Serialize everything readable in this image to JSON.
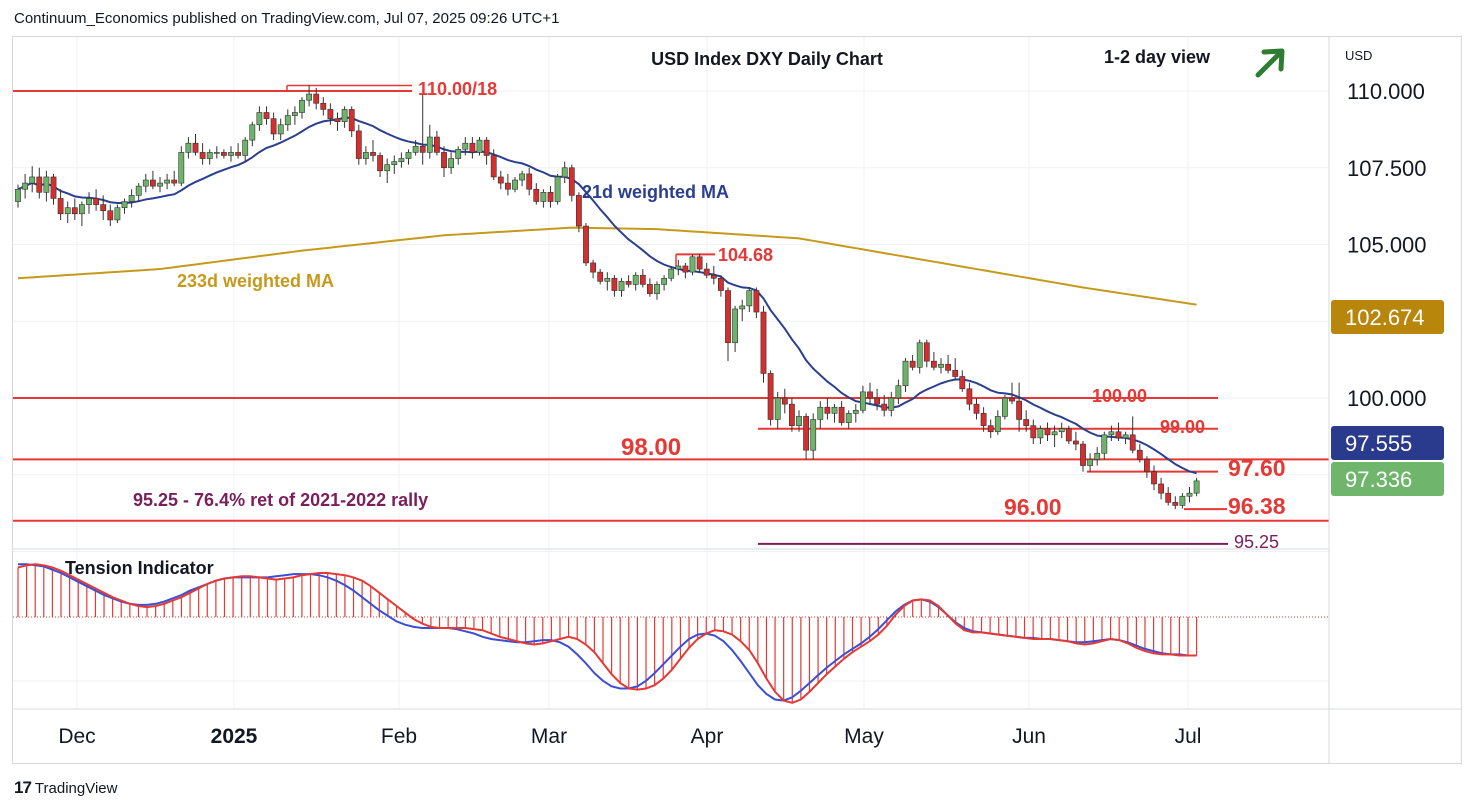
{
  "header": {
    "publisher_line": "Continuum_Economics published on TradingView.com, Jul 07, 2025 09:26 UTC+1"
  },
  "footer": {
    "brand": "TradingView"
  },
  "currency_label": "USD",
  "colors": {
    "up_candle": "#6db36a",
    "down_candle": "#d32f2f",
    "ma21": "#2a3f8f",
    "ma233": "#c59a1c",
    "level_line": "#e53935",
    "fib_line": "#7b1f5c",
    "tension_fast": "#e53935",
    "tension_slow": "#3b4fd6",
    "arrow": "#2e7d32",
    "badge_ma233": "#b8860b",
    "badge_ma21": "#2a3a8c",
    "badge_price": "#6fb66c"
  },
  "chart_data": {
    "type": "candlestick",
    "title": "USD Index DXY Daily Chart",
    "view_label": "1-2 day view",
    "view_direction_icon": "arrow-up-right-icon",
    "y_axis": {
      "currency": "USD",
      "min": 94.9,
      "max": 111.2,
      "ticks": [
        "110.000",
        "107.500",
        "105.000",
        "100.000"
      ]
    },
    "x_axis": {
      "ticks": [
        "Dec",
        "2025",
        "Feb",
        "Mar",
        "Apr",
        "May",
        "Jun",
        "Jul"
      ]
    },
    "price_badges": [
      {
        "label": "102.674",
        "value": 102.674,
        "kind": "ma233"
      },
      {
        "label": "97.555",
        "value": 97.555,
        "kind": "ma21"
      },
      {
        "label": "97.336",
        "value": 97.336,
        "kind": "price"
      }
    ],
    "series_labels": {
      "ma21": "21d weighted MA",
      "ma233": "233d weighted MA"
    },
    "levels": [
      {
        "label": "110.00/18",
        "value": 110.0,
        "top_value": 110.18
      },
      {
        "label": "104.68",
        "value": 104.68
      },
      {
        "label": "100.00",
        "value": 100.0
      },
      {
        "label": "99.00",
        "value": 99.0
      },
      {
        "label": "98.00",
        "value": 98.0
      },
      {
        "label": "97.60",
        "value": 97.6
      },
      {
        "label": "96.38",
        "value": 96.38
      },
      {
        "label": "96.00",
        "value": 96.0
      },
      {
        "label": "95.25",
        "value": 95.25
      }
    ],
    "fib_annotation": "95.25 - 76.4% ret of 2021-2022 rally",
    "ohlc": [
      [
        106.4,
        106.95,
        106.2,
        106.8
      ],
      [
        106.8,
        107.3,
        106.5,
        107.0
      ],
      [
        107.0,
        107.55,
        106.7,
        107.2
      ],
      [
        107.2,
        107.5,
        106.5,
        106.7
      ],
      [
        106.7,
        107.4,
        106.4,
        107.2
      ],
      [
        107.2,
        107.3,
        106.3,
        106.5
      ],
      [
        106.5,
        106.8,
        105.8,
        106.0
      ],
      [
        106.0,
        106.4,
        105.7,
        106.2
      ],
      [
        106.2,
        106.5,
        105.8,
        106.0
      ],
      [
        106.0,
        106.4,
        105.6,
        106.3
      ],
      [
        106.3,
        106.7,
        106.0,
        106.5
      ],
      [
        106.5,
        106.8,
        106.1,
        106.3
      ],
      [
        106.3,
        106.6,
        105.8,
        106.1
      ],
      [
        106.1,
        106.3,
        105.6,
        105.8
      ],
      [
        105.8,
        106.3,
        105.7,
        106.2
      ],
      [
        106.2,
        106.5,
        106.0,
        106.4
      ],
      [
        106.4,
        106.8,
        106.2,
        106.6
      ],
      [
        106.6,
        107.0,
        106.4,
        106.9
      ],
      [
        106.9,
        107.3,
        106.7,
        107.1
      ],
      [
        107.1,
        107.4,
        106.8,
        106.9
      ],
      [
        106.9,
        107.2,
        106.7,
        107.0
      ],
      [
        107.0,
        107.3,
        106.8,
        107.1
      ],
      [
        107.1,
        107.4,
        106.9,
        107.0
      ],
      [
        107.0,
        108.2,
        106.9,
        108.0
      ],
      [
        108.0,
        108.5,
        107.8,
        108.3
      ],
      [
        108.3,
        108.6,
        107.9,
        108.0
      ],
      [
        108.0,
        108.3,
        107.6,
        107.8
      ],
      [
        107.8,
        108.1,
        107.6,
        108.0
      ],
      [
        108.0,
        108.2,
        107.8,
        108.0
      ],
      [
        108.0,
        108.1,
        107.8,
        107.9
      ],
      [
        107.9,
        108.2,
        107.7,
        108.0
      ],
      [
        108.0,
        108.3,
        107.8,
        107.9
      ],
      [
        107.9,
        108.5,
        107.7,
        108.4
      ],
      [
        108.4,
        109.0,
        108.2,
        108.9
      ],
      [
        108.9,
        109.5,
        108.7,
        109.3
      ],
      [
        109.3,
        109.5,
        108.9,
        109.1
      ],
      [
        109.1,
        109.3,
        108.4,
        108.6
      ],
      [
        108.6,
        109.1,
        108.4,
        108.9
      ],
      [
        108.9,
        109.4,
        108.7,
        109.2
      ],
      [
        109.2,
        109.5,
        108.9,
        109.3
      ],
      [
        109.3,
        109.8,
        109.1,
        109.7
      ],
      [
        109.7,
        110.18,
        109.5,
        109.9
      ],
      [
        109.9,
        110.1,
        109.4,
        109.6
      ],
      [
        109.6,
        109.8,
        109.2,
        109.4
      ],
      [
        109.4,
        109.6,
        108.9,
        109.1
      ],
      [
        109.1,
        109.3,
        108.7,
        109.0
      ],
      [
        109.0,
        109.5,
        108.8,
        109.4
      ],
      [
        109.4,
        109.5,
        108.5,
        108.7
      ],
      [
        108.7,
        108.9,
        107.6,
        107.8
      ],
      [
        107.8,
        108.2,
        107.6,
        108.0
      ],
      [
        108.0,
        108.4,
        107.7,
        107.9
      ],
      [
        107.9,
        108.0,
        107.2,
        107.4
      ],
      [
        107.4,
        107.8,
        107.0,
        107.6
      ],
      [
        107.6,
        107.9,
        107.3,
        107.7
      ],
      [
        107.7,
        108.0,
        107.5,
        107.8
      ],
      [
        107.8,
        108.1,
        107.6,
        108.0
      ],
      [
        108.0,
        108.4,
        107.9,
        108.2
      ],
      [
        108.2,
        109.9,
        107.6,
        108.0
      ],
      [
        108.0,
        108.9,
        107.8,
        108.5
      ],
      [
        108.5,
        108.7,
        107.9,
        108.0
      ],
      [
        108.0,
        108.2,
        107.2,
        107.5
      ],
      [
        107.5,
        108.0,
        107.3,
        107.8
      ],
      [
        107.8,
        108.2,
        107.6,
        108.1
      ],
      [
        108.1,
        108.5,
        107.9,
        108.3
      ],
      [
        108.3,
        108.5,
        107.8,
        108.0
      ],
      [
        108.0,
        108.5,
        107.9,
        108.4
      ],
      [
        108.4,
        108.5,
        107.6,
        107.9
      ],
      [
        107.9,
        108.1,
        107.1,
        107.2
      ],
      [
        107.2,
        107.4,
        106.8,
        107.0
      ],
      [
        107.0,
        107.3,
        106.6,
        106.8
      ],
      [
        106.8,
        107.2,
        106.7,
        107.1
      ],
      [
        107.1,
        107.4,
        106.9,
        107.3
      ],
      [
        107.3,
        107.5,
        106.6,
        106.8
      ],
      [
        106.8,
        107.0,
        106.3,
        106.4
      ],
      [
        106.4,
        106.8,
        106.2,
        106.7
      ],
      [
        106.7,
        106.9,
        106.2,
        106.4
      ],
      [
        106.4,
        107.3,
        106.3,
        107.2
      ],
      [
        107.2,
        107.7,
        107.0,
        107.5
      ],
      [
        107.5,
        107.6,
        106.4,
        106.6
      ],
      [
        106.6,
        106.7,
        105.4,
        105.6
      ],
      [
        105.6,
        105.7,
        104.3,
        104.4
      ],
      [
        104.4,
        104.5,
        103.9,
        104.1
      ],
      [
        104.1,
        104.2,
        103.7,
        103.8
      ],
      [
        103.8,
        104.1,
        103.5,
        103.9
      ],
      [
        103.9,
        104.0,
        103.3,
        103.5
      ],
      [
        103.5,
        103.9,
        103.3,
        103.8
      ],
      [
        103.8,
        104.0,
        103.6,
        103.7
      ],
      [
        103.7,
        104.1,
        103.5,
        104.0
      ],
      [
        104.0,
        104.2,
        103.6,
        103.7
      ],
      [
        103.7,
        103.9,
        103.3,
        103.4
      ],
      [
        103.4,
        103.8,
        103.2,
        103.7
      ],
      [
        103.7,
        104.0,
        103.5,
        103.9
      ],
      [
        103.9,
        104.3,
        103.8,
        104.2
      ],
      [
        104.2,
        104.5,
        104.0,
        104.3
      ],
      [
        104.3,
        104.4,
        103.9,
        104.1
      ],
      [
        104.1,
        104.68,
        104.0,
        104.6
      ],
      [
        104.6,
        104.7,
        104.1,
        104.2
      ],
      [
        104.2,
        104.4,
        103.9,
        104.0
      ],
      [
        104.0,
        104.3,
        103.7,
        103.9
      ],
      [
        103.9,
        104.0,
        103.3,
        103.5
      ],
      [
        103.5,
        103.6,
        101.2,
        101.8
      ],
      [
        101.8,
        103.0,
        101.5,
        102.9
      ],
      [
        102.9,
        103.2,
        102.5,
        103.0
      ],
      [
        103.0,
        103.6,
        102.8,
        103.5
      ],
      [
        103.5,
        103.6,
        102.6,
        102.8
      ],
      [
        102.8,
        103.0,
        100.5,
        100.8
      ],
      [
        100.8,
        100.9,
        99.1,
        99.3
      ],
      [
        99.3,
        100.2,
        99.0,
        100.0
      ],
      [
        100.0,
        100.3,
        99.5,
        99.8
      ],
      [
        99.8,
        100.0,
        98.9,
        99.1
      ],
      [
        99.1,
        99.6,
        98.9,
        99.4
      ],
      [
        99.4,
        99.5,
        98.0,
        98.3
      ],
      [
        98.3,
        99.5,
        98.0,
        99.3
      ],
      [
        99.3,
        99.9,
        99.0,
        99.7
      ],
      [
        99.7,
        100.0,
        99.3,
        99.5
      ],
      [
        99.5,
        99.8,
        99.2,
        99.7
      ],
      [
        99.7,
        99.9,
        99.1,
        99.2
      ],
      [
        99.2,
        99.6,
        99.0,
        99.5
      ],
      [
        99.5,
        99.8,
        99.2,
        99.6
      ],
      [
        99.6,
        100.4,
        99.5,
        100.2
      ],
      [
        100.2,
        100.5,
        99.8,
        100.0
      ],
      [
        100.0,
        100.3,
        99.6,
        99.8
      ],
      [
        99.8,
        100.1,
        99.4,
        99.6
      ],
      [
        99.6,
        100.2,
        99.4,
        100.0
      ],
      [
        100.0,
        100.6,
        99.8,
        100.4
      ],
      [
        100.4,
        101.3,
        100.2,
        101.2
      ],
      [
        101.2,
        101.4,
        100.9,
        101.0
      ],
      [
        101.0,
        101.9,
        100.8,
        101.8
      ],
      [
        101.8,
        101.9,
        101.0,
        101.2
      ],
      [
        101.2,
        101.5,
        100.9,
        101.0
      ],
      [
        101.0,
        101.3,
        100.8,
        101.1
      ],
      [
        101.1,
        101.4,
        100.8,
        100.9
      ],
      [
        100.9,
        101.3,
        100.6,
        100.7
      ],
      [
        100.7,
        100.9,
        100.2,
        100.3
      ],
      [
        100.3,
        100.5,
        99.6,
        99.8
      ],
      [
        99.8,
        100.0,
        99.3,
        99.5
      ],
      [
        99.5,
        99.7,
        98.9,
        99.1
      ],
      [
        99.1,
        99.3,
        98.7,
        98.9
      ],
      [
        98.9,
        99.6,
        98.8,
        99.4
      ],
      [
        99.4,
        100.1,
        99.3,
        100.0
      ],
      [
        100.0,
        100.5,
        99.8,
        99.9
      ],
      [
        99.9,
        100.5,
        98.9,
        99.3
      ],
      [
        99.3,
        99.6,
        98.9,
        99.1
      ],
      [
        99.1,
        99.3,
        98.5,
        98.7
      ],
      [
        98.7,
        99.1,
        98.5,
        99.0
      ],
      [
        99.0,
        99.2,
        98.6,
        98.8
      ],
      [
        98.8,
        99.1,
        98.4,
        98.9
      ],
      [
        98.9,
        99.2,
        98.7,
        99.0
      ],
      [
        99.0,
        99.1,
        98.5,
        98.6
      ],
      [
        98.6,
        98.9,
        98.3,
        98.5
      ],
      [
        98.5,
        98.6,
        97.6,
        97.8
      ],
      [
        97.8,
        98.2,
        97.6,
        98.0
      ],
      [
        98.0,
        98.4,
        97.8,
        98.2
      ],
      [
        98.2,
        98.9,
        98.0,
        98.8
      ],
      [
        98.8,
        99.1,
        98.6,
        98.9
      ],
      [
        98.9,
        99.2,
        98.6,
        98.7
      ],
      [
        98.7,
        98.9,
        98.5,
        98.8
      ],
      [
        98.8,
        99.4,
        98.2,
        98.3
      ],
      [
        98.3,
        98.5,
        97.9,
        98.0
      ],
      [
        98.0,
        98.1,
        97.4,
        97.6
      ],
      [
        97.6,
        97.8,
        97.0,
        97.2
      ],
      [
        97.2,
        97.4,
        96.7,
        96.9
      ],
      [
        96.9,
        97.1,
        96.5,
        96.6
      ],
      [
        96.6,
        96.8,
        96.38,
        96.5
      ],
      [
        96.5,
        96.9,
        96.4,
        96.8
      ],
      [
        96.8,
        97.1,
        96.6,
        96.9
      ],
      [
        96.9,
        97.4,
        96.8,
        97.3
      ]
    ],
    "tension_indicator": {
      "label": "Tension Indicator",
      "fast": [
        0.45,
        0.47,
        0.48,
        0.47,
        0.45,
        0.42,
        0.38,
        0.34,
        0.3,
        0.26,
        0.22,
        0.18,
        0.15,
        0.12,
        0.1,
        0.09,
        0.1,
        0.12,
        0.15,
        0.18,
        0.22,
        0.26,
        0.3,
        0.33,
        0.35,
        0.36,
        0.37,
        0.37,
        0.36,
        0.35,
        0.34,
        0.35,
        0.36,
        0.38,
        0.39,
        0.4,
        0.4,
        0.39,
        0.38,
        0.36,
        0.33,
        0.28,
        0.22,
        0.16,
        0.1,
        0.04,
        -0.02,
        -0.06,
        -0.09,
        -0.1,
        -0.1,
        -0.1,
        -0.1,
        -0.11,
        -0.12,
        -0.15,
        -0.18,
        -0.2,
        -0.22,
        -0.24,
        -0.25,
        -0.24,
        -0.22,
        -0.2,
        -0.18,
        -0.2,
        -0.25,
        -0.32,
        -0.42,
        -0.52,
        -0.6,
        -0.65,
        -0.66,
        -0.65,
        -0.62,
        -0.56,
        -0.48,
        -0.38,
        -0.28,
        -0.2,
        -0.15,
        -0.12,
        -0.13,
        -0.16,
        -0.22,
        -0.3,
        -0.42,
        -0.56,
        -0.68,
        -0.76,
        -0.78,
        -0.75,
        -0.68,
        -0.6,
        -0.52,
        -0.45,
        -0.38,
        -0.32,
        -0.27,
        -0.22,
        -0.16,
        -0.08,
        0.02,
        0.1,
        0.15,
        0.16,
        0.15,
        0.1,
        0.02,
        -0.06,
        -0.12,
        -0.14,
        -0.14,
        -0.15,
        -0.16,
        -0.17,
        -0.18,
        -0.19,
        -0.2,
        -0.2,
        -0.2,
        -0.21,
        -0.22,
        -0.24,
        -0.25,
        -0.24,
        -0.22,
        -0.2,
        -0.21,
        -0.24,
        -0.28,
        -0.31,
        -0.33,
        -0.34,
        -0.34,
        -0.35,
        -0.35,
        -0.35
      ],
      "slow": [
        0.48,
        0.48,
        0.47,
        0.46,
        0.43,
        0.4,
        0.36,
        0.32,
        0.28,
        0.24,
        0.2,
        0.17,
        0.14,
        0.12,
        0.11,
        0.11,
        0.12,
        0.14,
        0.17,
        0.2,
        0.24,
        0.27,
        0.3,
        0.33,
        0.35,
        0.36,
        0.36,
        0.36,
        0.36,
        0.36,
        0.37,
        0.38,
        0.39,
        0.39,
        0.39,
        0.38,
        0.36,
        0.33,
        0.29,
        0.24,
        0.18,
        0.12,
        0.06,
        0.01,
        -0.04,
        -0.07,
        -0.09,
        -0.1,
        -0.1,
        -0.1,
        -0.1,
        -0.11,
        -0.13,
        -0.15,
        -0.18,
        -0.2,
        -0.21,
        -0.22,
        -0.23,
        -0.23,
        -0.22,
        -0.21,
        -0.21,
        -0.23,
        -0.27,
        -0.34,
        -0.42,
        -0.51,
        -0.58,
        -0.63,
        -0.65,
        -0.65,
        -0.63,
        -0.58,
        -0.51,
        -0.43,
        -0.35,
        -0.27,
        -0.2,
        -0.16,
        -0.15,
        -0.17,
        -0.22,
        -0.3,
        -0.4,
        -0.51,
        -0.62,
        -0.7,
        -0.75,
        -0.76,
        -0.73,
        -0.67,
        -0.6,
        -0.53,
        -0.46,
        -0.4,
        -0.34,
        -0.29,
        -0.24,
        -0.18,
        -0.11,
        -0.03,
        0.05,
        0.11,
        0.15,
        0.16,
        0.14,
        0.09,
        0.02,
        -0.05,
        -0.1,
        -0.13,
        -0.14,
        -0.15,
        -0.16,
        -0.17,
        -0.18,
        -0.19,
        -0.19,
        -0.2,
        -0.2,
        -0.21,
        -0.22,
        -0.23,
        -0.23,
        -0.22,
        -0.21,
        -0.2,
        -0.21,
        -0.23,
        -0.26,
        -0.29,
        -0.31,
        -0.33,
        -0.34,
        -0.34,
        -0.35,
        -0.35
      ]
    }
  }
}
